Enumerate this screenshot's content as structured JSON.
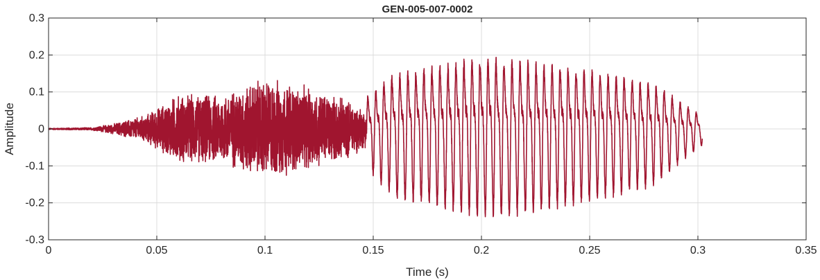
{
  "chart_data": {
    "type": "line",
    "title": "GEN-005-007-0002",
    "xlabel": "Time (s)",
    "ylabel": "Amplitude",
    "xlim": [
      0,
      0.35
    ],
    "ylim": [
      -0.3,
      0.3
    ],
    "xticks": [
      0,
      0.05,
      0.1,
      0.15,
      0.2,
      0.25,
      0.3,
      0.35
    ],
    "xtick_labels": [
      "0",
      "0.05",
      "0.1",
      "0.15",
      "0.2",
      "0.25",
      "0.3",
      "0.35"
    ],
    "yticks": [
      -0.3,
      -0.2,
      -0.1,
      0,
      0.1,
      0.2,
      0.3
    ],
    "ytick_labels": [
      "-0.3",
      "-0.2",
      "-0.1",
      "0",
      "0.1",
      "0.2",
      "0.3"
    ],
    "grid": true,
    "series": [
      {
        "color": "#a0152f",
        "signal_end": 0.302,
        "segments": [
          {
            "kind": "noise",
            "t_start": 0.0,
            "t_end": 0.147,
            "envelope": [
              [
                0.0,
                0.002
              ],
              [
                0.02,
                0.004
              ],
              [
                0.03,
                0.015
              ],
              [
                0.045,
                0.04
              ],
              [
                0.06,
                0.1
              ],
              [
                0.08,
                0.1
              ],
              [
                0.1,
                0.15
              ],
              [
                0.12,
                0.12
              ],
              [
                0.14,
                0.08
              ],
              [
                0.147,
                0.05
              ]
            ]
          },
          {
            "kind": "periodic",
            "t_start": 0.147,
            "t_end": 0.302,
            "period": 0.0037,
            "envelope": [
              [
                0.147,
                0.1
              ],
              [
                0.16,
                0.17
              ],
              [
                0.185,
                0.2
              ],
              [
                0.2,
                0.22
              ],
              [
                0.22,
                0.21
              ],
              [
                0.25,
                0.18
              ],
              [
                0.28,
                0.14
              ],
              [
                0.295,
                0.07
              ],
              [
                0.302,
                0.04
              ]
            ]
          }
        ]
      }
    ]
  }
}
